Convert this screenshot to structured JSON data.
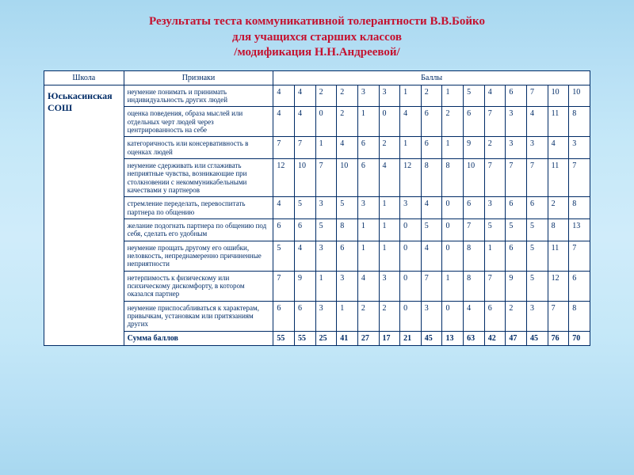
{
  "title": {
    "line1": "Результаты теста коммуникативной толерантности В.В.Бойко",
    "line2": "для учащихся старших классов",
    "line3": "/модификация Н.Н.Андреевой/"
  },
  "headers": {
    "school": "Школа",
    "attributes": "Признаки",
    "scores": "Баллы"
  },
  "school_name": "Юськасинская СОШ",
  "rows": [
    {
      "label": "неумение понимать и принимать индивидуальность других людей",
      "vals": [
        "4",
        "4",
        "2",
        "2",
        "3",
        "3",
        "1",
        "2",
        "1",
        "5",
        "4",
        "6",
        "7",
        "10",
        "10"
      ]
    },
    {
      "label": "оценка поведения, образа мыслей или отдельных черт людей через центрированность на себе",
      "vals": [
        "4",
        "4",
        "0",
        "2",
        "1",
        "0",
        "4",
        "6",
        "2",
        "6",
        "7",
        "3",
        "4",
        "11",
        "8"
      ]
    },
    {
      "label": "категоричность или консервативность в оценках людей",
      "vals": [
        "7",
        "7",
        "1",
        "4",
        "6",
        "2",
        "1",
        "6",
        "1",
        "9",
        "2",
        "3",
        "3",
        "4",
        "3"
      ]
    },
    {
      "label": "неумение сдерживать или сглаживать неприятные чувства, возникающие при столкновении с некоммуникабельными качествами у партнеров",
      "vals": [
        "12",
        "10",
        "7",
        "10",
        "6",
        "4",
        "12",
        "8",
        "8",
        "10",
        "7",
        "7",
        "7",
        "11",
        "7"
      ]
    },
    {
      "label": "стремление переделать, перевоспитать партнера по общению",
      "vals": [
        "4",
        "5",
        "3",
        "5",
        "3",
        "1",
        "3",
        "4",
        "0",
        "6",
        "3",
        "6",
        "6",
        "2",
        "8"
      ]
    },
    {
      "label": "желание подогнать партнера по общению под себя, сделать его удобным",
      "vals": [
        "6",
        "6",
        "5",
        "8",
        "1",
        "1",
        "0",
        "5",
        "0",
        "7",
        "5",
        "5",
        "5",
        "8",
        "13"
      ]
    },
    {
      "label": "неумение прощать другому его ошибки, неловкость, непреднамеренно причиненные неприятности",
      "vals": [
        "5",
        "4",
        "3",
        "6",
        "1",
        "1",
        "0",
        "4",
        "0",
        "8",
        "1",
        "6",
        "5",
        "11",
        "7"
      ]
    },
    {
      "label": "нетерпимость к физическому или психическому дискомфорту, в котором оказался партнер",
      "vals": [
        "7",
        "9",
        "1",
        "3",
        "4",
        "3",
        "0",
        "7",
        "1",
        "8",
        "7",
        "9",
        "5",
        "12",
        "6"
      ]
    },
    {
      "label": "неумение приспосабливаться к характерам, привычкам, установкам или притязаниям других",
      "vals": [
        "6",
        "6",
        "3",
        "1",
        "2",
        "2",
        "0",
        "3",
        "0",
        "4",
        "6",
        "2",
        "3",
        "7",
        "8"
      ]
    }
  ],
  "sum": {
    "label": "Сумма баллов",
    "vals": [
      "55",
      "55",
      "25",
      "41",
      "27",
      "17",
      "21",
      "45",
      "13",
      "63",
      "42",
      "47",
      "45",
      "76",
      "70"
    ]
  },
  "style": {
    "title_color": "#c41230",
    "border_color": "#002b66",
    "text_color": "#002b66",
    "num_cols": 15
  }
}
